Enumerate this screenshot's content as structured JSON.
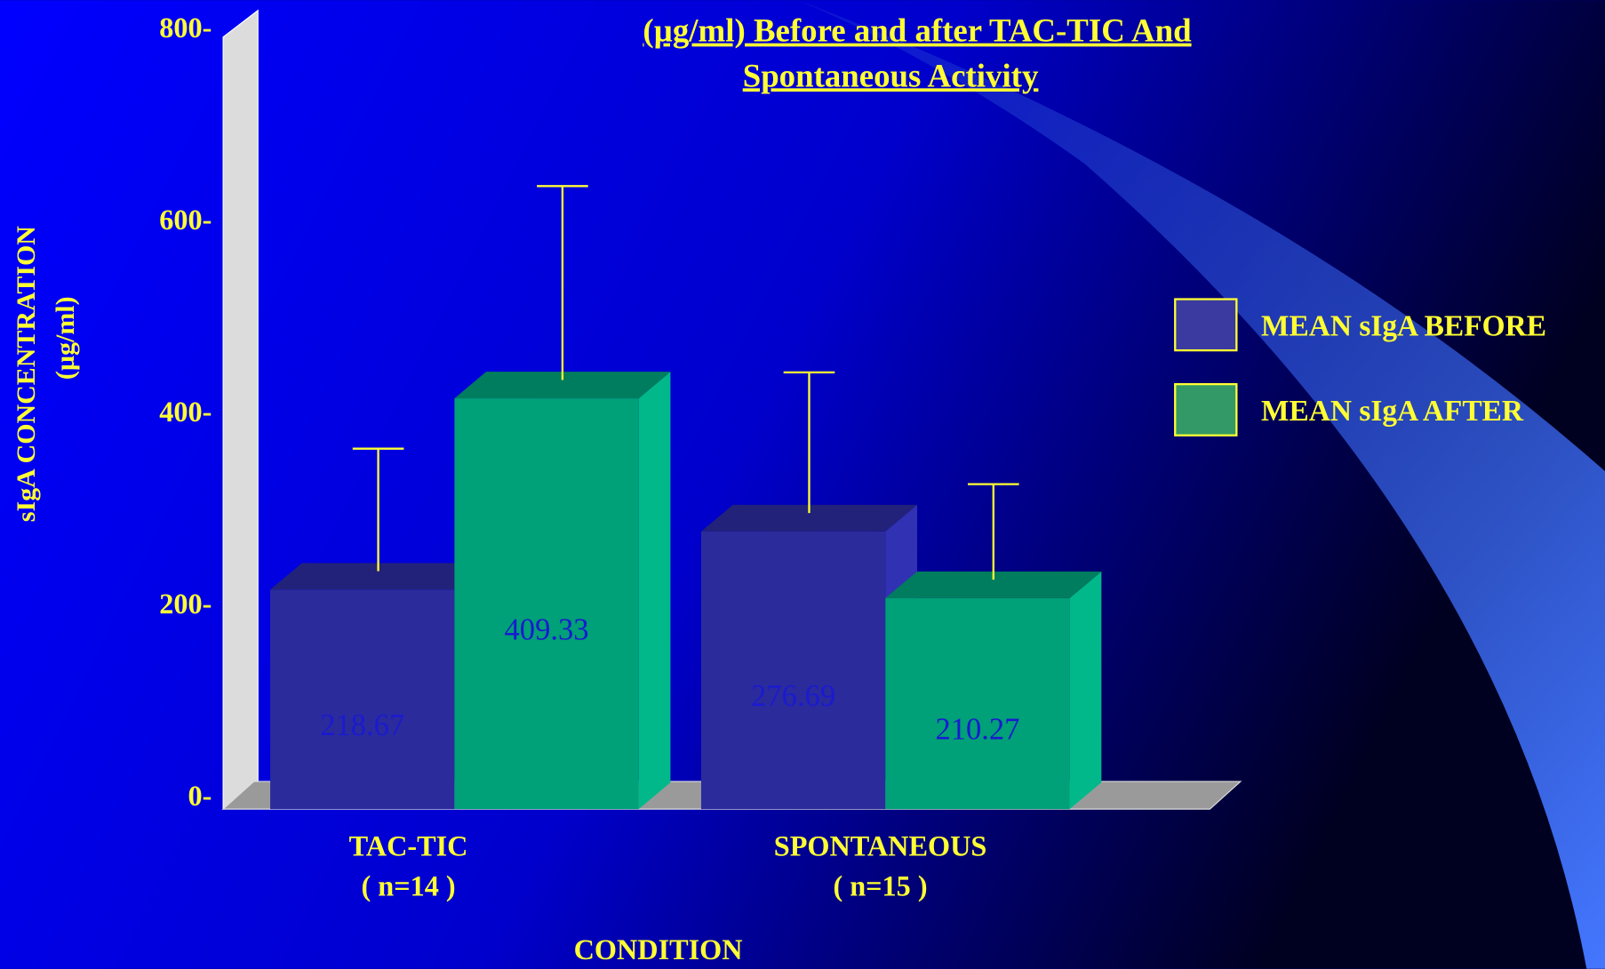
{
  "chart_data": {
    "type": "bar3d",
    "title": [
      "(µg/ml) Before and after TAC-TIC And",
      "Spontaneous Activity"
    ],
    "y_label": [
      "sIgA CONCENTRATION",
      "(µg/ml)"
    ],
    "x_label": "CONDITION",
    "categories": [
      [
        "TAC-TIC",
        "( n=14 )"
      ],
      [
        "SPONTANEOUS",
        "( n=15 )"
      ]
    ],
    "series": [
      {
        "name": "MEAN  sIgA BEFORE",
        "color": "#2b2b9c",
        "values": [
          218.67,
          276.69
        ],
        "errors": [
          114,
          132
        ]
      },
      {
        "name": "MEAN sIgA AFTER",
        "color": "#00a078",
        "values": [
          409.33,
          210.27
        ],
        "errors": [
          185,
          87
        ]
      }
    ],
    "ylim": [
      0,
      800
    ],
    "yticks": [
      {
        "value": 0,
        "label": "0-"
      },
      {
        "value": 200,
        "label": "200-"
      },
      {
        "value": 400,
        "label": "400-"
      },
      {
        "value": 600,
        "label": "600-"
      },
      {
        "value": 800,
        "label": "800-"
      }
    ],
    "legend": "right"
  }
}
